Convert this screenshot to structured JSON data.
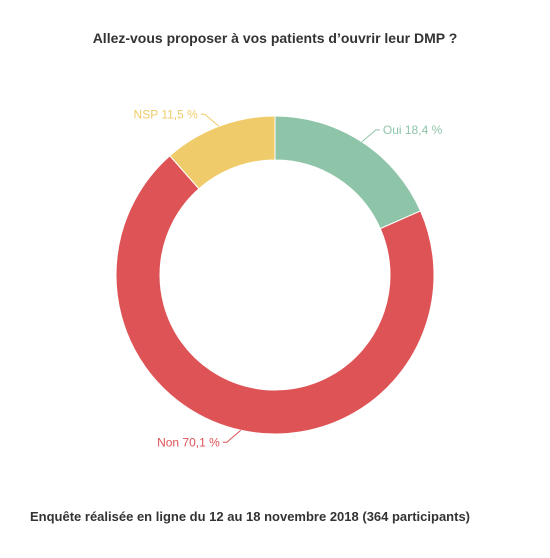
{
  "chart_data": {
    "type": "pie",
    "variant": "donut",
    "title": "Allez-vous proposer à vos patients d’ouvrir leur DMP ?",
    "slices": [
      {
        "label": "Oui",
        "value": 18.4,
        "display": "Oui 18,4 %",
        "color": "#8ec5a8"
      },
      {
        "label": "Non",
        "value": 70.1,
        "display": "Non 70,1 %",
        "color": "#de5356"
      },
      {
        "label": "NSP",
        "value": 11.5,
        "display": "NSP 11,5 %",
        "color": "#f0cb69"
      }
    ],
    "legend": "none",
    "footnote": "Enquête réalisée en ligne du 12 au 18 novembre 2018  (364 participants)"
  }
}
